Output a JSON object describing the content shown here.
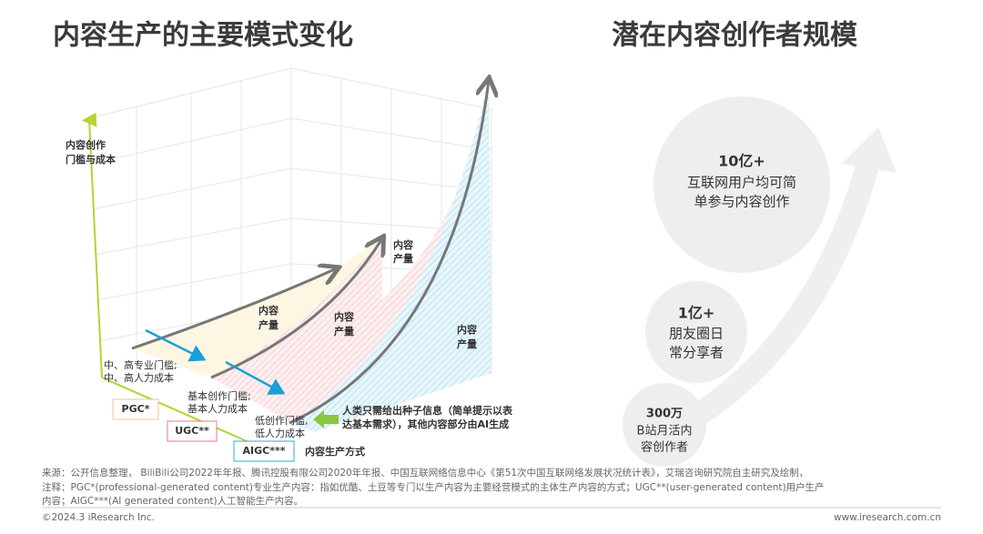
{
  "left_panel": {
    "title": "内容生产的主要模式变化",
    "y_axis_label": [
      "内容创作",
      "门槛与成本"
    ],
    "x_axis_label": "内容生产方式",
    "output_labels": [
      [
        "内容",
        "产量"
      ],
      [
        "内容",
        "产量"
      ],
      [
        "内容",
        "产量"
      ],
      [
        "内容",
        "产量"
      ]
    ],
    "modes": [
      {
        "name": "PGC*",
        "desc": [
          "中、高专业门槛;",
          "中、高人力成本"
        ]
      },
      {
        "name": "UGC**",
        "desc": [
          "基本创作门槛;",
          "基本人力成本"
        ]
      },
      {
        "name": "AIGC***",
        "desc": [
          "低创作门槛,",
          "低人力成本"
        ]
      }
    ],
    "ai_note": [
      "人类只需给出种子信息（简单提示以表",
      "达基本需求），其他内容部分由AI生成"
    ]
  },
  "right_panel": {
    "title": "潜在内容创作者规模",
    "tiers": [
      {
        "value": "10亿+",
        "desc": [
          "互联网用户均可简",
          "单参与内容创作"
        ]
      },
      {
        "value": "1亿+",
        "desc": [
          "朋友圈日",
          "常分享者"
        ]
      },
      {
        "value": "300万",
        "desc": [
          "B站月活内",
          "容创作者"
        ]
      }
    ]
  },
  "footer": {
    "source": "来源：公开信息整理， BiliBili公司2022年年报、腾讯控股有限公司2020年年报、中国互联网络信息中心《第51次中国互联网络发展状况统计表》，艾瑞咨询研究院自主研究及绘制，",
    "note": [
      "注释：PGC*(professional-generated content)专业生产内容：指如优酷、土豆等专门以生产内容为主要经营模式的主体生产内容的方式；UGC**(user-generated content)用户生产",
      "内容；AIGC***(AI generated content)人工智能生产内容。"
    ],
    "copyright": "©2024.3 iResearch Inc.",
    "website": "www.iresearch.com.cn"
  }
}
